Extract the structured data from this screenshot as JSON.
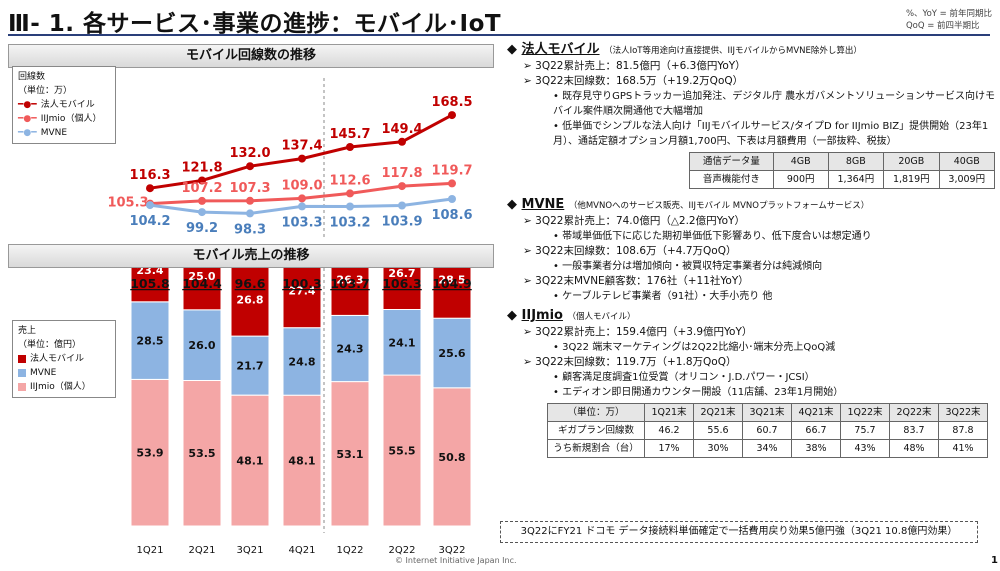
{
  "title": "Ⅲ- 1.  各サービス･事業の進捗：モバイル･IoT",
  "top_legend": [
    "%、YoY = 前年同期比",
    "QoQ = 前四半期比"
  ],
  "left": {
    "line_section_title": "モバイル回線数の推移",
    "line_legend": {
      "title": "回線数",
      "unit": "（単位：万）",
      "items": [
        "法人モバイル",
        "IIJmio（個人）",
        "MVNE"
      ]
    },
    "bar_section_title": "モバイル売上の推移",
    "bar_legend": {
      "title": "売上",
      "unit": "（単位：億円）",
      "items": [
        "法人モバイル",
        "MVNE",
        "IIJmio（個人）"
      ]
    }
  },
  "colors": {
    "corporate": "#c00000",
    "iijmio": "#f05a5a",
    "mvne": "#8db4e2",
    "iijmio_bar": "#f4a6a6",
    "mvne_label": "#4a7ebb"
  },
  "chart_data": [
    {
      "type": "line",
      "title": "モバイル回線数の推移",
      "x": [
        "1Q21",
        "2Q21",
        "3Q21",
        "4Q21",
        "1Q22",
        "2Q22",
        "3Q22"
      ],
      "series": [
        {
          "name": "法人モバイル",
          "values": [
            116.3,
            121.8,
            132.0,
            137.4,
            145.7,
            149.4,
            168.5
          ]
        },
        {
          "name": "IIJmio（個人）",
          "values": [
            105.3,
            107.2,
            107.3,
            109.0,
            112.6,
            117.8,
            119.7
          ]
        },
        {
          "name": "MVNE",
          "values": [
            104.2,
            99.2,
            98.3,
            103.3,
            103.2,
            103.9,
            108.6
          ]
        }
      ],
      "labels": {
        "corp": [
          "116.3",
          "121.8",
          "132.0",
          "137.4",
          "145.7",
          "149.4",
          "168.5"
        ],
        "iij": [
          "105.3",
          "107.2",
          "107.3",
          "109.0",
          "112.6",
          "117.8",
          "119.7"
        ],
        "mvne": [
          "104.2",
          "99.2",
          "98.3",
          "103.3",
          "103.2",
          "103.9",
          "108.6"
        ]
      }
    },
    {
      "type": "bar",
      "title": "モバイル売上の推移",
      "categories": [
        "1Q21",
        "2Q21",
        "3Q21",
        "4Q21",
        "1Q22",
        "2Q22",
        "3Q22"
      ],
      "totals": [
        "105.8",
        "104.4",
        "96.6",
        "100.3",
        "103.7",
        "106.3",
        "104.9"
      ],
      "series": [
        {
          "name": "IIJmio（個人）",
          "values": [
            53.9,
            53.5,
            48.1,
            48.1,
            53.1,
            55.5,
            50.8
          ]
        },
        {
          "name": "MVNE",
          "values": [
            28.5,
            26.0,
            21.7,
            24.8,
            24.3,
            24.1,
            25.6
          ]
        },
        {
          "name": "法人モバイル",
          "values": [
            23.4,
            25.0,
            26.8,
            27.4,
            26.3,
            26.7,
            28.5
          ]
        }
      ]
    }
  ],
  "right": {
    "s1": {
      "head": "法人モバイル",
      "note": "（法人IoT等用途向け直接提供、IIJモバイルからMVNE除外し算出）",
      "b1": "3Q22累計売上：81.5億円（+6.3億円YoY）",
      "b2": "3Q22末回線数：168.5万（+19.2万QoQ）",
      "s1": "既存見守りGPSトラッカー追加発注、デジタル庁 農水ガバメントソリューションサービス向けモバイル案件順次開通他で大幅増加",
      "s2": "低単価でシンプルな法人向け「IIJモバイルサービス/タイプD for IIJmio BIZ」提供開始（23年1月）、通話定額オプション月額1,700円、下表は月額費用（一部抜粋、税抜）",
      "table": {
        "h": [
          "通信データ量",
          "4GB",
          "8GB",
          "20GB",
          "40GB"
        ],
        "r": [
          "音声機能付き",
          "900円",
          "1,364円",
          "1,819円",
          "3,009円"
        ]
      }
    },
    "s2": {
      "head": "MVNE",
      "note": "（他MVNOへのサービス販売、IIJモバイル MVNOプラットフォームサービス）",
      "b1": "3Q22累計売上：74.0億円（△2.2億円YoY）",
      "s1": "帯域単価低下に応じた期初単価低下影響あり、低下度合いは想定通り",
      "b2": "3Q22末回線数：108.6万（+4.7万QoQ）",
      "s2": "一般事業者分は増加傾向・被買収特定事業者分は純減傾向",
      "b3": "3Q22末MVNE顧客数：176社（+11社YoY）",
      "s3": "ケーブルテレビ事業者（91社）・大手小売り 他"
    },
    "s3": {
      "head": "IIJmio",
      "note": "（個人モバイル）",
      "b1": "3Q22累計売上：159.4億円（+3.9億円YoY）",
      "s1": "3Q22 端末マーケティングは2Q22比縮小･端末分売上QoQ減",
      "b2": "3Q22末回線数：119.7万（+1.8万QoQ）",
      "s2": "顧客満足度調査1位受賞（オリコン・J.D.パワー・JCSI）",
      "s3": "エディオン即日開通カウンター開設（11店舗、23年1月開始）",
      "table": {
        "h": [
          "（単位：万）",
          "1Q21末",
          "2Q21末",
          "3Q21末",
          "4Q21末",
          "1Q22末",
          "2Q22末",
          "3Q22末"
        ],
        "r1": [
          "ギガプラン回線数",
          "46.2",
          "55.6",
          "60.7",
          "66.7",
          "75.7",
          "83.7",
          "87.8"
        ],
        "r2": [
          "うち新規割合（台）",
          "17%",
          "30%",
          "34%",
          "38%",
          "43%",
          "48%",
          "41%"
        ]
      }
    }
  },
  "footnote": "3Q22にFY21 ドコモ データ接続料単価確定で一括費用戻り効果5億円強（3Q21 10.8億円効果）",
  "copyright": "© Internet Initiative Japan Inc.",
  "page_number": "1"
}
